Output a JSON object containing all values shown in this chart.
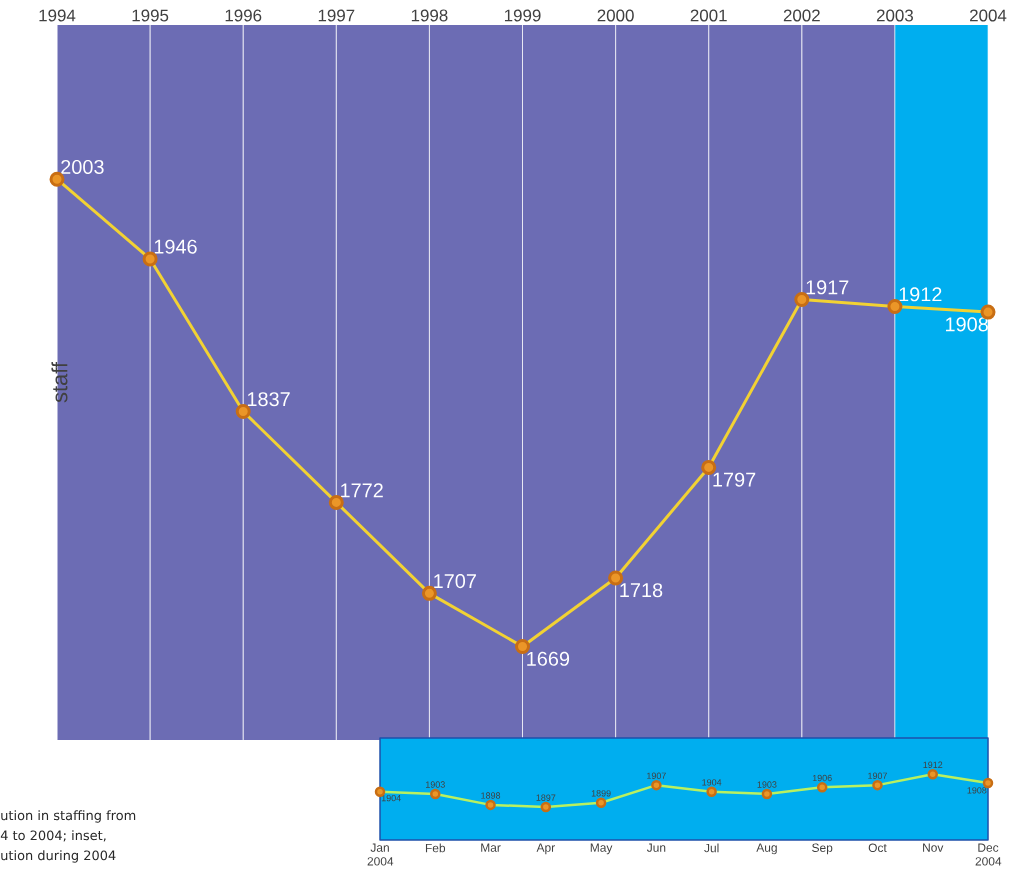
{
  "chart_data": [
    {
      "type": "line",
      "ylabel": "staff",
      "x": [
        1994,
        1995,
        1996,
        1997,
        1998,
        1999,
        2000,
        2001,
        2002,
        2003,
        2004
      ],
      "xlim": [
        1994,
        2004
      ],
      "xticks": [
        1994,
        1995,
        1996,
        1997,
        1998,
        1999,
        2000,
        2001,
        2002,
        2003,
        2004
      ],
      "series": [
        {
          "color": "#f2d233",
          "values": [
            2003,
            1946,
            1837,
            1772,
            1707,
            1669,
            1718,
            1797,
            1917,
            1912,
            1908
          ]
        }
      ],
      "data_labels": true,
      "marker": "circle",
      "grid": "x",
      "bands": [
        {
          "axis": "x",
          "from": 2003,
          "to": 2004,
          "color": "#00aeef"
        }
      ],
      "annotations": [
        "ution in staffing from",
        "4 to 2004; inset,",
        "ution during 2004"
      ]
    },
    {
      "type": "line",
      "categories": [
        "Jan 2004",
        "Feb",
        "Mar",
        "Apr",
        "May",
        "Jun",
        "Jul",
        "Aug",
        "Sep",
        "Oct",
        "Nov",
        "Dec 2004"
      ],
      "series": [
        {
          "color": "#b8f060",
          "values": [
            1904,
            1903,
            1898,
            1897,
            1899,
            1907,
            1904,
            1903,
            1906,
            1907,
            1912,
            1908
          ]
        }
      ],
      "data_labels": true,
      "marker": "circle"
    }
  ]
}
